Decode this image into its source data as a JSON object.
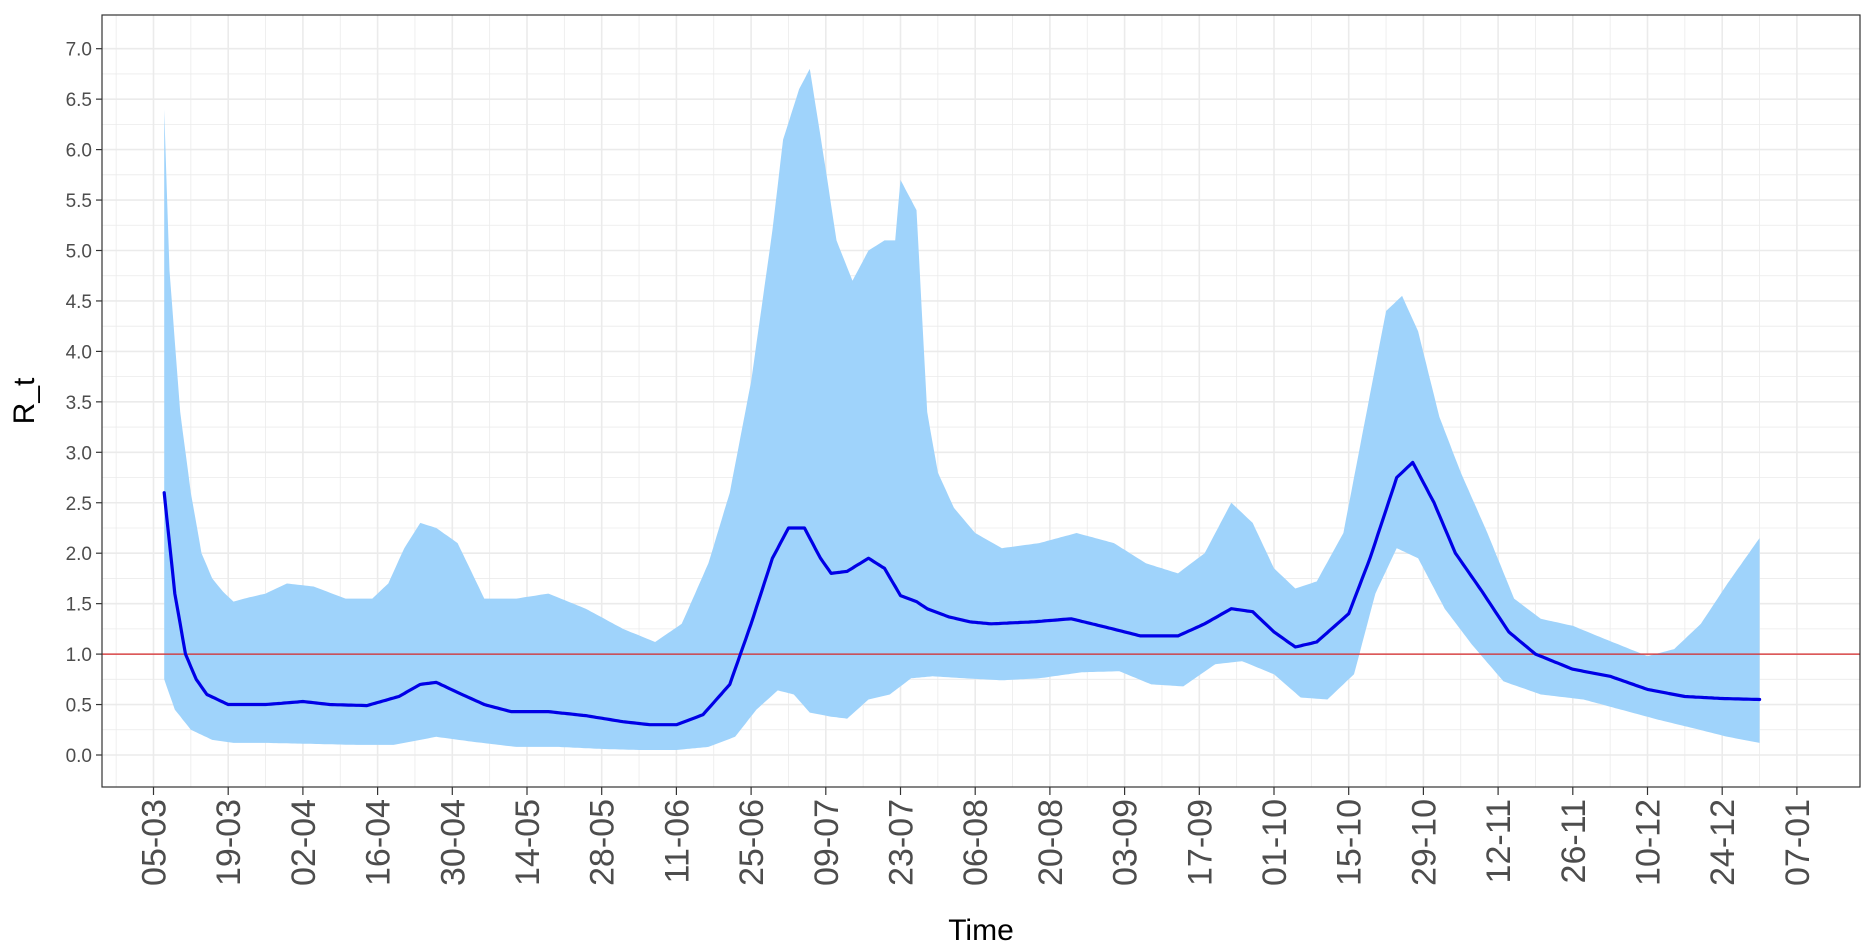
{
  "chart_data": {
    "type": "line",
    "xlabel": "Time",
    "ylabel": "R_t",
    "x_ticks": [
      "05-03",
      "19-03",
      "02-04",
      "16-04",
      "30-04",
      "14-05",
      "28-05",
      "11-06",
      "25-06",
      "09-07",
      "23-07",
      "06-08",
      "20-08",
      "03-09",
      "17-09",
      "01-10",
      "15-10",
      "29-10",
      "12-11",
      "26-11",
      "10-12",
      "24-12",
      "07-01"
    ],
    "y_ticks": [
      "0.0",
      "0.5",
      "1.0",
      "1.5",
      "2.0",
      "2.5",
      "3.0",
      "3.5",
      "4.0",
      "4.5",
      "5.0",
      "5.5",
      "6.0",
      "6.5",
      "7.0"
    ],
    "ylim": [
      -0.3,
      7.35
    ],
    "reference_line": {
      "y": 1.0,
      "color": "#d62728"
    },
    "grid": true,
    "colors": {
      "ribbon": "#9fd3fb",
      "line": "#0000e6",
      "reference": "#d62728",
      "grid": "#ebebeb",
      "frame": "#333333"
    },
    "series": [
      {
        "kind": "line",
        "x": [
          "2020-03-07",
          "2020-03-09",
          "2020-03-11",
          "2020-03-13",
          "2020-03-15",
          "2020-03-17",
          "2020-03-19",
          "2020-03-22",
          "2020-03-26",
          "2020-04-02",
          "2020-04-07",
          "2020-04-14",
          "2020-04-20",
          "2020-04-24",
          "2020-04-27",
          "2020-05-01",
          "2020-05-06",
          "2020-05-11",
          "2020-05-18",
          "2020-05-25",
          "2020-06-01",
          "2020-06-06",
          "2020-06-11",
          "2020-06-16",
          "2020-06-21",
          "2020-06-25",
          "2020-06-29",
          "2020-07-02",
          "2020-07-05",
          "2020-07-08",
          "2020-07-10",
          "2020-07-13",
          "2020-07-17",
          "2020-07-20",
          "2020-07-23",
          "2020-07-26",
          "2020-07-28",
          "2020-08-01",
          "2020-08-05",
          "2020-08-09",
          "2020-08-17",
          "2020-08-24",
          "2020-08-31",
          "2020-09-06",
          "2020-09-13",
          "2020-09-18",
          "2020-09-23",
          "2020-09-27",
          "2020-10-01",
          "2020-10-05",
          "2020-10-09",
          "2020-10-15",
          "2020-10-19",
          "2020-10-24",
          "2020-10-27",
          "2020-10-31",
          "2020-11-04",
          "2020-11-09",
          "2020-11-14",
          "2020-11-19",
          "2020-11-26",
          "2020-12-03",
          "2020-12-10",
          "2020-12-17",
          "2020-12-24",
          "2020-12-31"
        ],
        "values": [
          2.6,
          1.6,
          1.0,
          0.75,
          0.6,
          0.55,
          0.5,
          0.5,
          0.5,
          0.53,
          0.5,
          0.49,
          0.58,
          0.7,
          0.72,
          0.62,
          0.5,
          0.43,
          0.43,
          0.39,
          0.33,
          0.3,
          0.3,
          0.4,
          0.7,
          1.3,
          1.95,
          2.25,
          2.25,
          1.95,
          1.8,
          1.82,
          1.95,
          1.85,
          1.58,
          1.52,
          1.45,
          1.37,
          1.32,
          1.3,
          1.32,
          1.35,
          1.26,
          1.18,
          1.18,
          1.3,
          1.45,
          1.42,
          1.22,
          1.07,
          1.12,
          1.4,
          1.95,
          2.75,
          2.9,
          2.5,
          2.0,
          1.62,
          1.22,
          1.0,
          0.85,
          0.78,
          0.65,
          0.58,
          0.56,
          0.55
        ]
      },
      {
        "kind": "band_upper",
        "x": [
          "2020-03-07",
          "2020-03-08",
          "2020-03-10",
          "2020-03-12",
          "2020-03-14",
          "2020-03-16",
          "2020-03-18",
          "2020-03-20",
          "2020-03-22",
          "2020-03-26",
          "2020-03-30",
          "2020-04-04",
          "2020-04-10",
          "2020-04-15",
          "2020-04-18",
          "2020-04-21",
          "2020-04-24",
          "2020-04-27",
          "2020-05-01",
          "2020-05-06",
          "2020-05-12",
          "2020-05-18",
          "2020-05-25",
          "2020-06-01",
          "2020-06-07",
          "2020-06-12",
          "2020-06-17",
          "2020-06-21",
          "2020-06-25",
          "2020-06-29",
          "2020-07-01",
          "2020-07-04",
          "2020-07-06",
          "2020-07-09",
          "2020-07-11",
          "2020-07-14",
          "2020-07-17",
          "2020-07-20",
          "2020-07-22",
          "2020-07-23",
          "2020-07-25",
          "2020-07-26",
          "2020-07-28",
          "2020-07-30",
          "2020-08-02",
          "2020-08-06",
          "2020-08-11",
          "2020-08-18",
          "2020-08-25",
          "2020-09-01",
          "2020-09-07",
          "2020-09-13",
          "2020-09-18",
          "2020-09-23",
          "2020-09-27",
          "2020-10-01",
          "2020-10-05",
          "2020-10-09",
          "2020-10-14",
          "2020-10-18",
          "2020-10-22",
          "2020-10-25",
          "2020-10-28",
          "2020-11-01",
          "2020-11-05",
          "2020-11-10",
          "2020-11-15",
          "2020-11-20",
          "2020-11-26",
          "2020-12-02",
          "2020-12-10",
          "2020-12-15",
          "2020-12-20",
          "2020-12-25",
          "2020-12-31"
        ],
        "values": [
          6.4,
          4.8,
          3.4,
          2.6,
          2.0,
          1.75,
          1.62,
          1.52,
          1.55,
          1.6,
          1.7,
          1.67,
          1.55,
          1.55,
          1.7,
          2.05,
          2.3,
          2.25,
          2.1,
          1.55,
          1.55,
          1.6,
          1.45,
          1.25,
          1.12,
          1.3,
          1.9,
          2.6,
          3.7,
          5.2,
          6.1,
          6.6,
          6.8,
          5.8,
          5.1,
          4.7,
          5.0,
          5.1,
          5.1,
          5.7,
          5.5,
          5.4,
          3.4,
          2.8,
          2.45,
          2.2,
          2.05,
          2.1,
          2.2,
          2.1,
          1.9,
          1.8,
          2.0,
          2.5,
          2.3,
          1.85,
          1.65,
          1.72,
          2.2,
          3.3,
          4.4,
          4.55,
          4.2,
          3.35,
          2.8,
          2.2,
          1.55,
          1.35,
          1.28,
          1.15,
          0.98,
          1.05,
          1.3,
          1.7,
          2.15
        ]
      },
      {
        "kind": "band_lower",
        "x": [
          "2020-03-07",
          "2020-03-09",
          "2020-03-12",
          "2020-03-16",
          "2020-03-20",
          "2020-03-26",
          "2020-04-04",
          "2020-04-12",
          "2020-04-19",
          "2020-04-27",
          "2020-05-04",
          "2020-05-12",
          "2020-05-20",
          "2020-05-28",
          "2020-06-04",
          "2020-06-11",
          "2020-06-17",
          "2020-06-22",
          "2020-06-26",
          "2020-06-30",
          "2020-07-03",
          "2020-07-06",
          "2020-07-10",
          "2020-07-13",
          "2020-07-17",
          "2020-07-21",
          "2020-07-25",
          "2020-07-29",
          "2020-08-04",
          "2020-08-11",
          "2020-08-18",
          "2020-08-26",
          "2020-09-02",
          "2020-09-08",
          "2020-09-14",
          "2020-09-20",
          "2020-09-25",
          "2020-10-01",
          "2020-10-06",
          "2020-10-11",
          "2020-10-16",
          "2020-10-20",
          "2020-10-24",
          "2020-10-28",
          "2020-11-02",
          "2020-11-07",
          "2020-11-13",
          "2020-11-20",
          "2020-11-28",
          "2020-12-05",
          "2020-12-12",
          "2020-12-19",
          "2020-12-25",
          "2020-12-31"
        ],
        "values": [
          0.75,
          0.45,
          0.25,
          0.15,
          0.12,
          0.12,
          0.11,
          0.1,
          0.1,
          0.18,
          0.13,
          0.08,
          0.08,
          0.06,
          0.05,
          0.05,
          0.08,
          0.18,
          0.45,
          0.64,
          0.6,
          0.42,
          0.38,
          0.36,
          0.55,
          0.6,
          0.76,
          0.78,
          0.76,
          0.74,
          0.76,
          0.82,
          0.83,
          0.7,
          0.68,
          0.9,
          0.93,
          0.8,
          0.57,
          0.55,
          0.8,
          1.6,
          2.05,
          1.95,
          1.45,
          1.1,
          0.73,
          0.6,
          0.55,
          0.45,
          0.35,
          0.26,
          0.18,
          0.12
        ]
      }
    ]
  }
}
